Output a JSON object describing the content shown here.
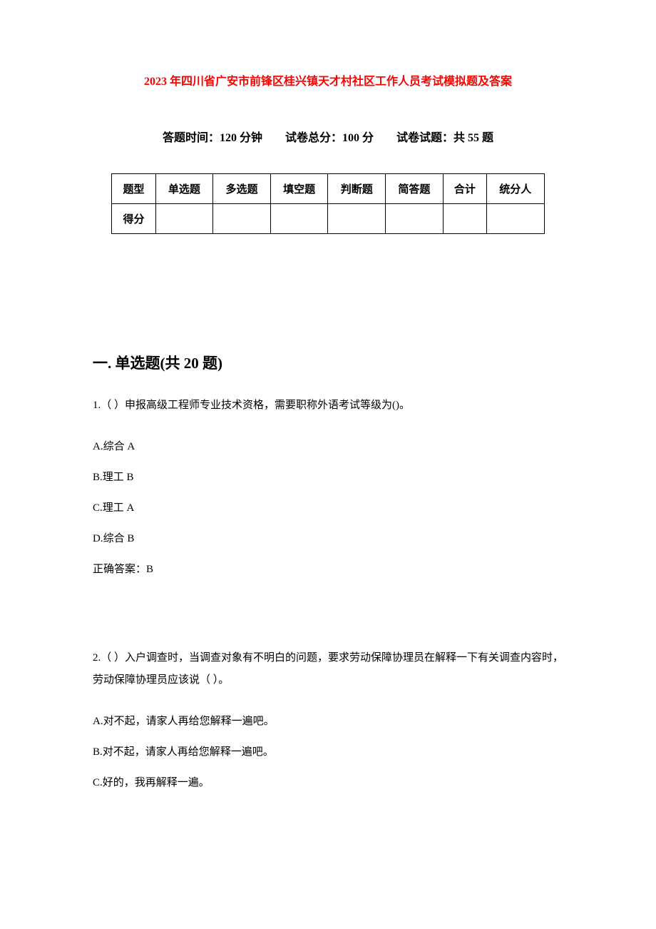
{
  "document": {
    "title": "2023 年四川省广安市前锋区桂兴镇天才村社区工作人员考试模拟题及答案",
    "title_color": "#ff0000",
    "title_fontsize": 16,
    "background_color": "#ffffff",
    "text_color": "#000000"
  },
  "exam_info": {
    "time_label": "答题时间：120 分钟",
    "total_label": "试卷总分：100 分",
    "count_label": "试卷试题：共 55 题",
    "fontsize": 16
  },
  "score_table": {
    "border_color": "#000000",
    "headers": [
      "题型",
      "单选题",
      "多选题",
      "填空题",
      "判断题",
      "简答题",
      "合计",
      "统分人"
    ],
    "row_label": "得分",
    "fontsize": 15
  },
  "section1": {
    "heading": "一. 单选题(共 20 题)",
    "fontsize": 21
  },
  "question1": {
    "text": "1.（ ）申报高级工程师专业技术资格，需要职称外语考试等级为()。",
    "option_a": "A.综合 A",
    "option_b": "B.理工 B",
    "option_c": "C.理工 A",
    "option_d": "D.综合 B",
    "answer": "正确答案：B"
  },
  "question2": {
    "text": "2.（ ）入户调查时，当调查对象有不明白的问题，要求劳动保障协理员在解释一下有关调查内容时，劳动保障协理员应该说（ ）。",
    "option_a": "A.对不起，请家人再给您解释一遍吧。",
    "option_b": "B.对不起，请家人再给您解释一遍吧。",
    "option_c": "C.好的，我再解释一遍。"
  }
}
